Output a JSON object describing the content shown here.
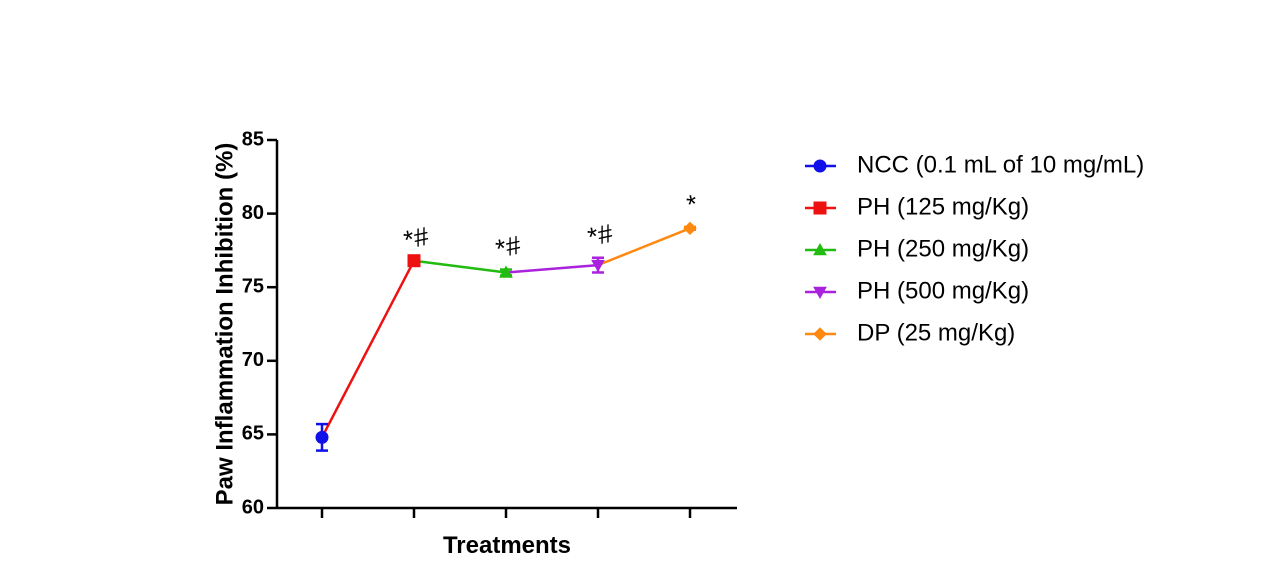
{
  "chart_data": {
    "type": "line",
    "xlabel": "Treatments",
    "ylabel": "Paw Inflammation Inhibition (%)",
    "ylim": [
      60,
      85
    ],
    "yticks": [
      "60",
      "65",
      "70",
      "75",
      "80",
      "85"
    ],
    "grid": false,
    "legend_position": "right",
    "series": [
      {
        "name": "NCC (0.1 mL of 10 mg/mL)",
        "color": "#1010e8",
        "marker": "circle",
        "value": 64.8,
        "error": 0.9,
        "annotation": ""
      },
      {
        "name": "PH (125 mg/Kg)",
        "color": "#ee1111",
        "marker": "square",
        "value": 76.8,
        "error": 0.0,
        "annotation": "*#"
      },
      {
        "name": "PH (250 mg/Kg)",
        "color": "#22bb11",
        "marker": "triangle-up",
        "value": 76.0,
        "error": 0.2,
        "annotation": "*#"
      },
      {
        "name": "PH (500 mg/Kg)",
        "color": "#aa22dd",
        "marker": "triangle-down",
        "value": 76.5,
        "error": 0.5,
        "annotation": "*#"
      },
      {
        "name": "DP (25 mg/Kg)",
        "color": "#ff8811",
        "marker": "diamond",
        "value": 79.0,
        "error": 0.1,
        "annotation": "*"
      }
    ]
  }
}
